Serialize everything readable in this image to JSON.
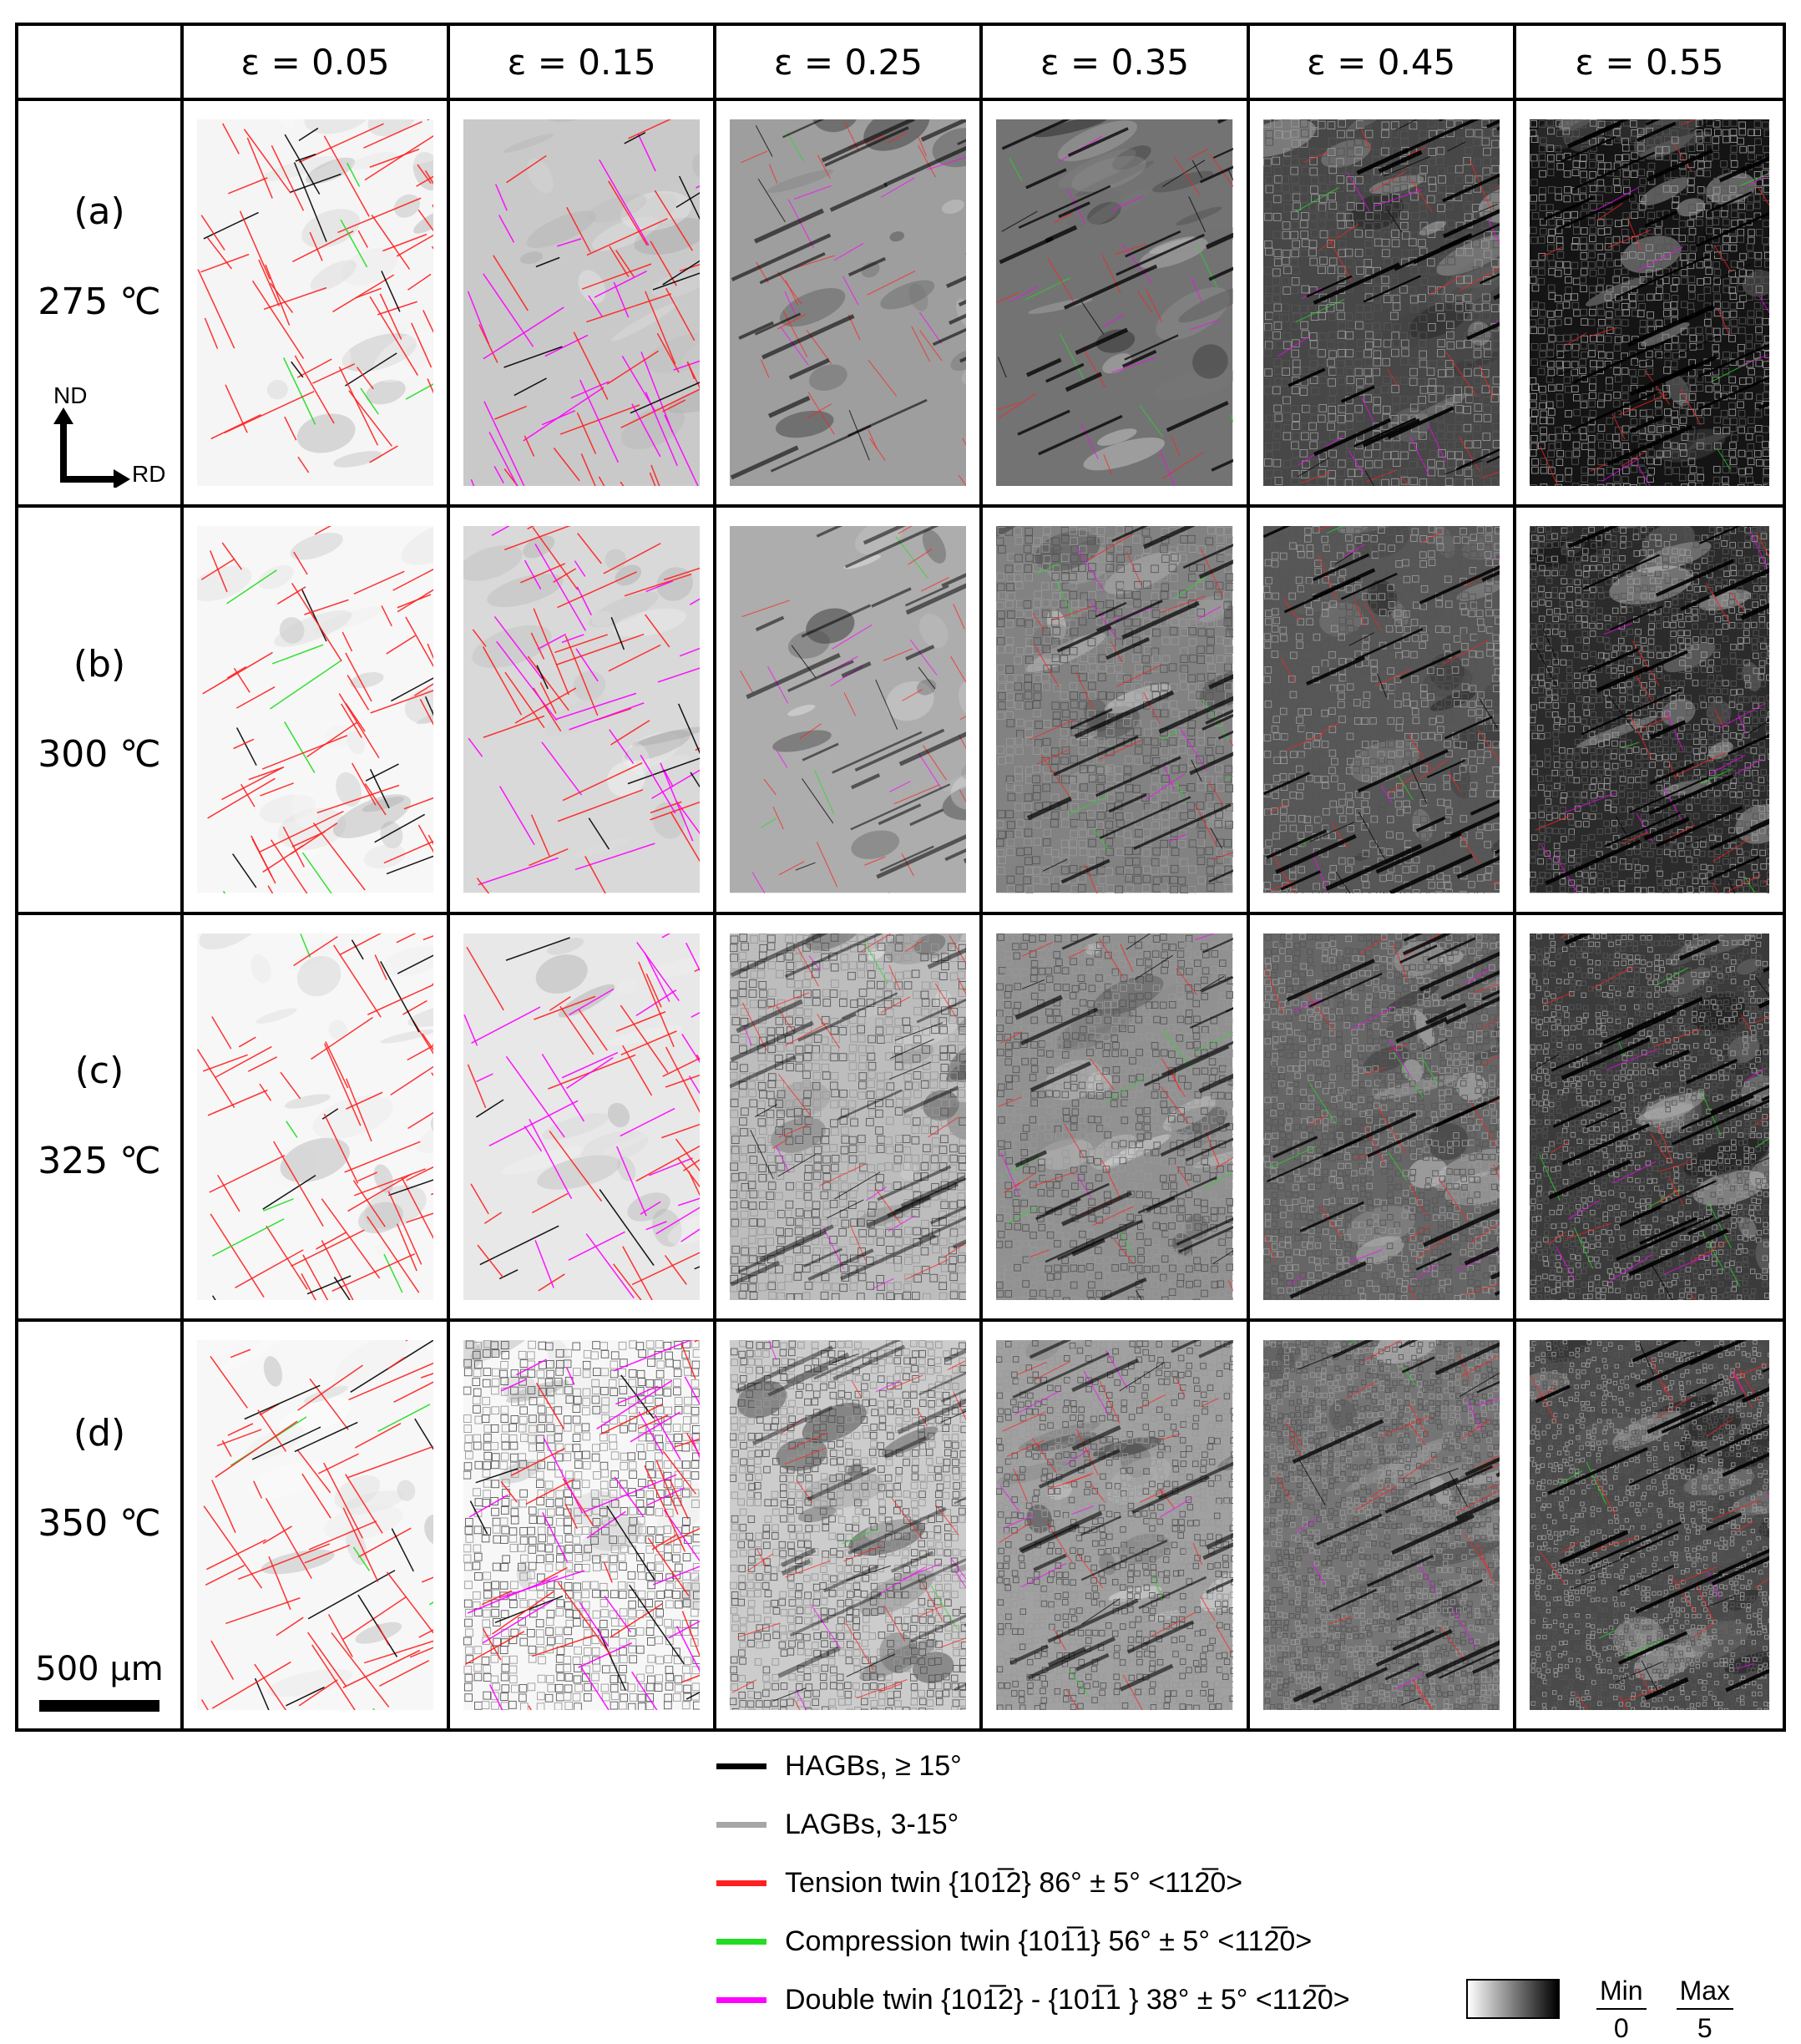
{
  "columns": [
    "ε = 0.05",
    "ε = 0.15",
    "ε = 0.25",
    "ε = 0.35",
    "ε = 0.45",
    "ε = 0.55"
  ],
  "rows": [
    {
      "label": "(a)",
      "temperature": "275 ℃"
    },
    {
      "label": "(b)",
      "temperature": "300 ℃"
    },
    {
      "label": "(c)",
      "temperature": "325 ℃"
    },
    {
      "label": "(d)",
      "temperature": "350 ℃"
    }
  ],
  "axes": {
    "vertical": "ND",
    "horizontal": "RD"
  },
  "scale_bar": "500 µm",
  "legend": [
    {
      "label": "HAGBs, ≥  15°",
      "color": "#000000"
    },
    {
      "label": "LAGBs, 3-15°",
      "color": "#a6a6a6"
    },
    {
      "label": "Tension twin {101̅2} 86° ± 5° <112̅0>",
      "color": "#ff2020"
    },
    {
      "label": "Compression twin {101̅1} 56° ± 5° <112̅0>",
      "color": "#22dd22"
    },
    {
      "label": "Double twin {101̅2} - {101̅1 } 38° ± 5° <112̅0>",
      "color": "#ff00ff"
    }
  ],
  "colormap": {
    "min_label": "Min",
    "min_value": "0",
    "max_label": "Max",
    "max_value": "5"
  }
}
